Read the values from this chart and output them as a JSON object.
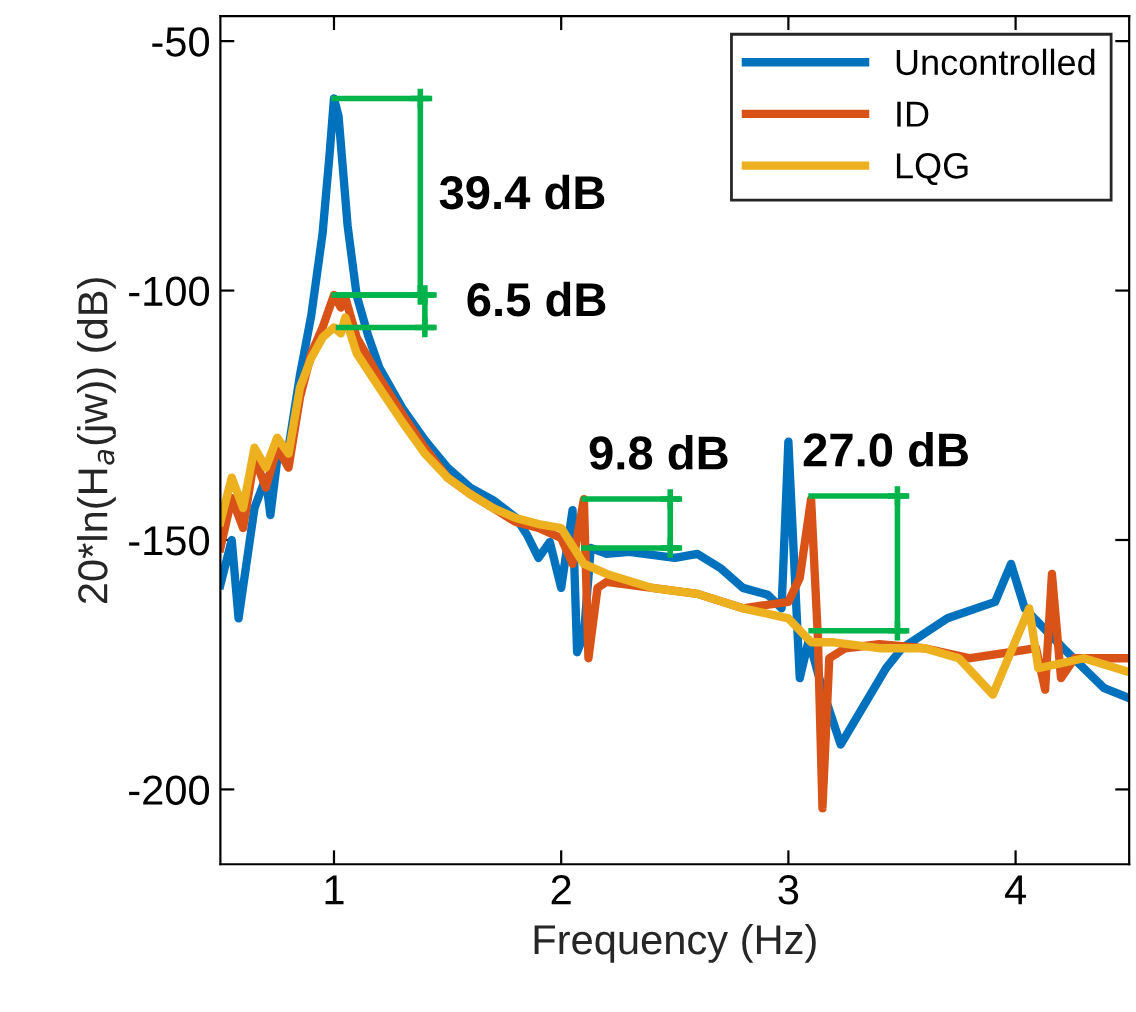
{
  "chart_data": {
    "type": "line",
    "xlabel": "Frequency (Hz)",
    "ylabel": "20*ln(H$_{a}$(jw)) (dB)",
    "xlim": [
      0.5,
      4.5
    ],
    "ylim": [
      -215,
      -45
    ],
    "xticks": [
      1,
      2,
      3,
      4
    ],
    "yticks": [
      -50,
      -100,
      -150,
      -200
    ],
    "legend": "top right",
    "grid": false,
    "line_style": "solid",
    "marker": "none",
    "series": [
      {
        "name": "Uncontrolled",
        "color": "#0072bd",
        "x": [
          0.5,
          0.55,
          0.58,
          0.65,
          0.7,
          0.72,
          0.75,
          0.8,
          0.85,
          0.9,
          0.95,
          0.98,
          1.0,
          1.02,
          1.06,
          1.1,
          1.15,
          1.2,
          1.3,
          1.4,
          1.5,
          1.6,
          1.7,
          1.8,
          1.85,
          1.9,
          1.95,
          2.0,
          2.05,
          2.07,
          2.1,
          2.13,
          2.2,
          2.3,
          2.5,
          2.6,
          2.7,
          2.8,
          2.91,
          2.97,
          3.0,
          3.05,
          3.09,
          3.15,
          3.23,
          3.43,
          3.5,
          3.7,
          3.91,
          3.98,
          4.04,
          4.21,
          4.39,
          4.5
        ],
        "values": [
          -159,
          -150,
          -165.7,
          -143.6,
          -137.5,
          -145,
          -134,
          -131.5,
          -117,
          -105,
          -88.5,
          -73,
          -61.5,
          -65,
          -87,
          -101,
          -109,
          -115.5,
          -123.5,
          -130,
          -135.5,
          -139.5,
          -142,
          -145.5,
          -149,
          -153.6,
          -150.4,
          -159.6,
          -144,
          -172.5,
          -169,
          -151.6,
          -152.8,
          -152.4,
          -153.6,
          -152.8,
          -155.6,
          -159.6,
          -161,
          -163.7,
          -130.3,
          -177.7,
          -170,
          -180,
          -191,
          -175.7,
          -171.7,
          -165.7,
          -162.4,
          -154.8,
          -163.7,
          -171.7,
          -179.7,
          -181.7
        ]
      },
      {
        "name": "ID",
        "color": "#d95319",
        "x": [
          0.5,
          0.55,
          0.6,
          0.65,
          0.7,
          0.75,
          0.8,
          0.85,
          0.9,
          0.95,
          1.0,
          1.03,
          1.05,
          1.1,
          1.2,
          1.3,
          1.4,
          1.5,
          1.6,
          1.7,
          1.8,
          1.9,
          2.0,
          2.05,
          2.1,
          2.12,
          2.16,
          2.2,
          2.4,
          2.6,
          2.8,
          3.0,
          3.05,
          3.1,
          3.13,
          3.15,
          3.18,
          3.25,
          3.4,
          3.6,
          3.8,
          4.09,
          4.13,
          4.16,
          4.2,
          4.26,
          4.5
        ],
        "values": [
          -151.6,
          -141.6,
          -147.6,
          -133.5,
          -139.5,
          -131.5,
          -135.5,
          -121.5,
          -112.6,
          -107.4,
          -100.9,
          -103.4,
          -101.4,
          -109.4,
          -117.5,
          -124.7,
          -131.5,
          -137.5,
          -140.8,
          -143.6,
          -146.4,
          -147.6,
          -149.6,
          -154.8,
          -141.8,
          -173.7,
          -159.6,
          -158.4,
          -159.6,
          -160.8,
          -163.7,
          -162.4,
          -157.6,
          -141.8,
          -169.7,
          -203.8,
          -173.7,
          -171.7,
          -170.9,
          -171.7,
          -173.7,
          -171.7,
          -180,
          -156.8,
          -177.7,
          -173.7,
          -173.7
        ]
      },
      {
        "name": "LQG",
        "color": "#edb120",
        "x": [
          0.5,
          0.55,
          0.6,
          0.65,
          0.7,
          0.75,
          0.8,
          0.85,
          0.9,
          0.95,
          1.0,
          1.03,
          1.05,
          1.1,
          1.2,
          1.3,
          1.4,
          1.5,
          1.6,
          1.7,
          1.8,
          1.9,
          2.0,
          2.1,
          2.2,
          2.4,
          2.6,
          2.8,
          3.0,
          3.1,
          3.2,
          3.4,
          3.6,
          3.75,
          3.9,
          4.06,
          4.1,
          4.3,
          4.5
        ],
        "values": [
          -146.4,
          -137.5,
          -143.6,
          -131.5,
          -135.5,
          -129.5,
          -132.7,
          -119.5,
          -113.5,
          -109.4,
          -107.4,
          -108.6,
          -105.4,
          -112.6,
          -119.5,
          -126.3,
          -132.7,
          -137.5,
          -140.8,
          -143.6,
          -145.6,
          -146.8,
          -147.6,
          -154.8,
          -156.8,
          -159.6,
          -160.8,
          -163.7,
          -165.7,
          -170.5,
          -170.5,
          -171.7,
          -171.7,
          -173.7,
          -181,
          -163.7,
          -175.7,
          -173.7,
          -176.5
        ]
      }
    ],
    "annotations": [
      {
        "text": "39.4 dB",
        "x": 1.0,
        "y": -61.5
      },
      {
        "text": "6.5 dB",
        "x": 1.02,
        "y": -100.9
      },
      {
        "text": "9.8 dB",
        "x": 2.1,
        "y": -141.8
      },
      {
        "text": "27.0 dB",
        "x": 3.1,
        "y": -141.2
      }
    ]
  }
}
